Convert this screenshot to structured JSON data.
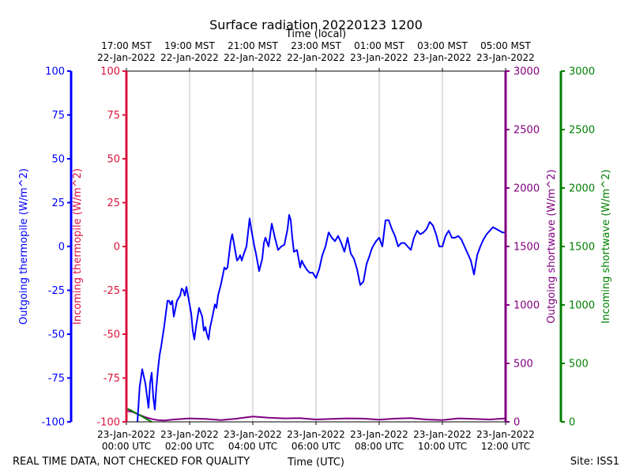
{
  "chart_data": {
    "type": "line",
    "title": "Surface radiation 20220123 1200",
    "top_axis_label": "Time (local)",
    "xlabel": "Time (UTC)",
    "x_range_hours_utc": [
      0,
      12
    ],
    "grid": true,
    "bottom_ticks": [
      {
        "h": 0,
        "date": "23-Jan-2022",
        "time": "00:00 UTC"
      },
      {
        "h": 2,
        "date": "23-Jan-2022",
        "time": "02:00 UTC"
      },
      {
        "h": 4,
        "date": "23-Jan-2022",
        "time": "04:00 UTC"
      },
      {
        "h": 6,
        "date": "23-Jan-2022",
        "time": "06:00 UTC"
      },
      {
        "h": 8,
        "date": "23-Jan-2022",
        "time": "08:00 UTC"
      },
      {
        "h": 10,
        "date": "23-Jan-2022",
        "time": "10:00 UTC"
      },
      {
        "h": 12,
        "date": "23-Jan-2022",
        "time": "12:00 UTC"
      }
    ],
    "top_ticks": [
      {
        "h": 0,
        "time": "17:00 MST",
        "date": "22-Jan-2022"
      },
      {
        "h": 2,
        "time": "19:00 MST",
        "date": "22-Jan-2022"
      },
      {
        "h": 4,
        "time": "21:00 MST",
        "date": "22-Jan-2022"
      },
      {
        "h": 6,
        "time": "23:00 MST",
        "date": "22-Jan-2022"
      },
      {
        "h": 8,
        "time": "01:00 MST",
        "date": "23-Jan-2022"
      },
      {
        "h": 10,
        "time": "03:00 MST",
        "date": "23-Jan-2022"
      },
      {
        "h": 12,
        "time": "05:00 MST",
        "date": "23-Jan-2022"
      }
    ],
    "axes": [
      {
        "key": "out_thermo",
        "label": "Outgoing thermopile (W/m^2)",
        "color": "#0000ff",
        "ylim": [
          -100,
          100
        ],
        "ticks": [
          -100,
          -75,
          -50,
          -25,
          0,
          25,
          50,
          75,
          100
        ]
      },
      {
        "key": "in_thermo",
        "label": "Incoming thermopile (W/m^2)",
        "color": "#dc143c",
        "ylim": [
          -100,
          100
        ],
        "ticks": [
          -100,
          -75,
          -50,
          -25,
          0,
          25,
          50,
          75,
          100
        ]
      },
      {
        "key": "out_sw",
        "label": "Outgoing shortwave (W/m^2)",
        "color": "#800080",
        "ylim": [
          0,
          3000
        ],
        "ticks": [
          0,
          500,
          1000,
          1500,
          2000,
          2500,
          3000
        ]
      },
      {
        "key": "in_sw",
        "label": "Incoming shortwave (W/m^2)",
        "color": "#008000",
        "ylim": [
          0,
          3000
        ],
        "ticks": [
          0,
          500,
          1000,
          1500,
          2000,
          2500,
          3000
        ]
      }
    ],
    "series": [
      {
        "axis": "out_sw",
        "color": "#800080",
        "x": [
          0,
          0.2,
          0.4,
          0.6,
          0.8,
          1.0,
          1.2,
          1.5,
          2.0,
          2.5,
          3.0,
          3.5,
          4.0,
          4.5,
          5.0,
          5.5,
          6.0,
          6.5,
          7.0,
          7.5,
          8.0,
          8.5,
          9.0,
          9.5,
          10.0,
          10.5,
          11.0,
          11.5,
          12.0
        ],
        "y": [
          95,
          85,
          60,
          40,
          25,
          15,
          12,
          20,
          30,
          25,
          15,
          28,
          45,
          35,
          30,
          32,
          20,
          25,
          30,
          28,
          18,
          28,
          32,
          20,
          15,
          30,
          25,
          20,
          30
        ]
      },
      {
        "axis": "in_sw",
        "color": "#008000",
        "x": [
          0,
          0.1,
          0.2,
          0.3,
          0.4,
          0.5,
          0.6,
          0.7,
          0.8
        ],
        "y": [
          115,
          105,
          90,
          75,
          60,
          45,
          30,
          15,
          0
        ]
      },
      {
        "axis": "out_thermo",
        "color": "#0000ff",
        "x": [
          0.35,
          0.42,
          0.5,
          0.6,
          0.7,
          0.75,
          0.8,
          0.85,
          0.9,
          0.95,
          1.0,
          1.05,
          1.1,
          1.2,
          1.3,
          1.35,
          1.4,
          1.45,
          1.5,
          1.6,
          1.7,
          1.75,
          1.8,
          1.85,
          1.9,
          2.0,
          2.05,
          2.1,
          2.15,
          2.2,
          2.3,
          2.4,
          2.45,
          2.5,
          2.55,
          2.6,
          2.65,
          2.7,
          2.8,
          2.85,
          2.9,
          3.0,
          3.1,
          3.15,
          3.2,
          3.3,
          3.35,
          3.4,
          3.5,
          3.55,
          3.6,
          3.65,
          3.7,
          3.8,
          3.9,
          3.95,
          4.0,
          4.05,
          4.1,
          4.2,
          4.3,
          4.35,
          4.4,
          4.5,
          4.6,
          4.7,
          4.8,
          4.9,
          5.0,
          5.1,
          5.15,
          5.2,
          5.25,
          5.3,
          5.4,
          5.45,
          5.5,
          5.55,
          5.6,
          5.7,
          5.8,
          5.9,
          6.0,
          6.1,
          6.2,
          6.3,
          6.4,
          6.5,
          6.6,
          6.7,
          6.8,
          6.9,
          7.0,
          7.1,
          7.2,
          7.3,
          7.4,
          7.5,
          7.6,
          7.7,
          7.75,
          7.8,
          7.9,
          8.0,
          8.1,
          8.2,
          8.3,
          8.4,
          8.5,
          8.6,
          8.7,
          8.8,
          8.9,
          9.0,
          9.1,
          9.2,
          9.3,
          9.4,
          9.5,
          9.6,
          9.7,
          9.8,
          9.9,
          10.0,
          10.1,
          10.2,
          10.3,
          10.4,
          10.5,
          10.6,
          10.7,
          10.8,
          10.9,
          11.0,
          11.1,
          11.2,
          11.3,
          11.4,
          11.5,
          11.6,
          11.7,
          11.8,
          11.9,
          12.0
        ],
        "y": [
          -100,
          -80,
          -70,
          -78,
          -92,
          -78,
          -72,
          -86,
          -93,
          -80,
          -70,
          -62,
          -57,
          -45,
          -31,
          -31,
          -33,
          -31,
          -40,
          -31,
          -28,
          -24,
          -25,
          -28,
          -23,
          -33,
          -38,
          -48,
          -53,
          -46,
          -35,
          -40,
          -48,
          -46,
          -50,
          -53,
          -46,
          -42,
          -33,
          -35,
          -28,
          -21,
          -12,
          -13,
          -12,
          3,
          7,
          2,
          -8,
          -7,
          -5,
          -8,
          -5,
          0,
          16,
          10,
          5,
          0,
          -4,
          -14,
          -7,
          2,
          5,
          0,
          13,
          5,
          -2,
          0,
          1,
          10,
          18,
          15,
          5,
          -3,
          -2,
          -7,
          -12,
          -8,
          -10,
          -13,
          -15,
          -15,
          -18,
          -13,
          -5,
          0,
          8,
          5,
          3,
          6,
          2,
          -3,
          5,
          -4,
          -7,
          -13,
          -22,
          -20,
          -10,
          -5,
          -2,
          0,
          3,
          5,
          0,
          15,
          15,
          10,
          6,
          0,
          2,
          2,
          0,
          -2,
          5,
          9,
          7,
          8,
          10,
          14,
          12,
          7,
          0,
          0,
          6,
          9,
          5,
          5,
          6,
          4,
          0,
          -4,
          -8,
          -16,
          -5,
          0,
          4,
          7,
          9,
          11,
          10,
          9,
          8,
          8
        ]
      }
    ]
  },
  "footer": {
    "left_note": "REAL TIME DATA, NOT CHECKED FOR QUALITY",
    "site": "Site: ISS1"
  }
}
